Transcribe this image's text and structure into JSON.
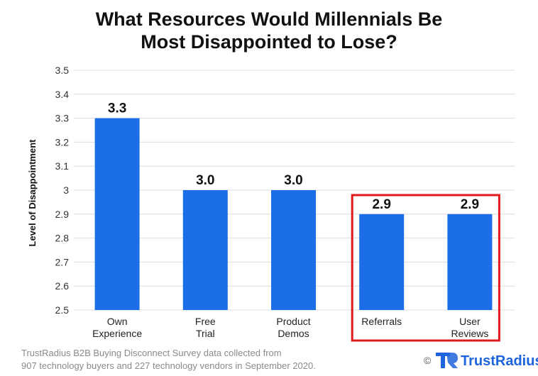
{
  "chart_data": {
    "type": "bar",
    "title_lines": [
      "What Resources Would Millennials Be",
      "Most Disappointed to Lose?"
    ],
    "ylabel": "Level of Disappointment",
    "xlabel": "",
    "ylim": [
      2.5,
      3.5
    ],
    "yticks": [
      "2.5",
      "2.6",
      "2.7",
      "2.8",
      "2.9",
      "3",
      "3.1",
      "3.2",
      "3.3",
      "3.4",
      "3.5"
    ],
    "categories": [
      [
        "Own",
        "Experience"
      ],
      [
        "Free",
        "Trial"
      ],
      [
        "Product",
        "Demos"
      ],
      [
        "Referrals"
      ],
      [
        "User",
        "Reviews"
      ]
    ],
    "values": [
      3.3,
      3.0,
      3.0,
      2.9,
      2.9
    ],
    "data_labels": [
      "3.3",
      "3.0",
      "3.0",
      "2.9",
      "2.9"
    ],
    "grid": true,
    "highlight_categories": [
      3,
      4
    ],
    "bar_color": "#1c6de8",
    "highlight_color": "#e0191e"
  },
  "footnote_lines": [
    "TrustRadius B2B Buying Disconnect Survey data collected from",
    "907 technology buyers and 227 technology vendors in September 2020."
  ],
  "brand": {
    "copyright": "©",
    "name": "TrustRadius",
    "logo_icon": "trustradius-logo-icon",
    "color": "#1e64dc"
  }
}
